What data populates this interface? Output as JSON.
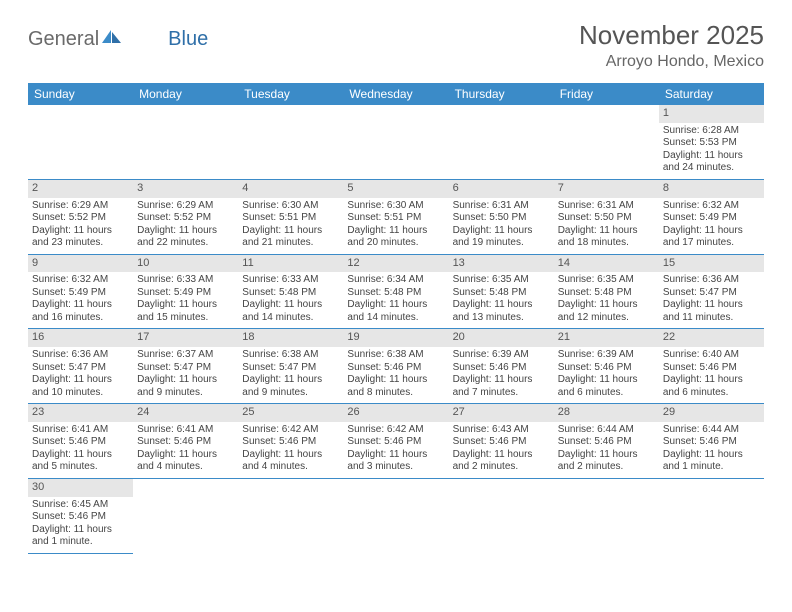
{
  "logo": {
    "text1": "General",
    "text2": "Blue"
  },
  "title": "November 2025",
  "location": "Arroyo Hondo, Mexico",
  "colors": {
    "header_bg": "#3b8bc8",
    "header_text": "#ffffff",
    "daynum_bg": "#e6e6e6",
    "border": "#3b8bc8",
    "text": "#444444"
  },
  "day_headers": [
    "Sunday",
    "Monday",
    "Tuesday",
    "Wednesday",
    "Thursday",
    "Friday",
    "Saturday"
  ],
  "weeks": [
    [
      {
        "n": "",
        "sr": "",
        "ss": "",
        "dl": ""
      },
      {
        "n": "",
        "sr": "",
        "ss": "",
        "dl": ""
      },
      {
        "n": "",
        "sr": "",
        "ss": "",
        "dl": ""
      },
      {
        "n": "",
        "sr": "",
        "ss": "",
        "dl": ""
      },
      {
        "n": "",
        "sr": "",
        "ss": "",
        "dl": ""
      },
      {
        "n": "",
        "sr": "",
        "ss": "",
        "dl": ""
      },
      {
        "n": "1",
        "sr": "Sunrise: 6:28 AM",
        "ss": "Sunset: 5:53 PM",
        "dl": "Daylight: 11 hours and 24 minutes."
      }
    ],
    [
      {
        "n": "2",
        "sr": "Sunrise: 6:29 AM",
        "ss": "Sunset: 5:52 PM",
        "dl": "Daylight: 11 hours and 23 minutes."
      },
      {
        "n": "3",
        "sr": "Sunrise: 6:29 AM",
        "ss": "Sunset: 5:52 PM",
        "dl": "Daylight: 11 hours and 22 minutes."
      },
      {
        "n": "4",
        "sr": "Sunrise: 6:30 AM",
        "ss": "Sunset: 5:51 PM",
        "dl": "Daylight: 11 hours and 21 minutes."
      },
      {
        "n": "5",
        "sr": "Sunrise: 6:30 AM",
        "ss": "Sunset: 5:51 PM",
        "dl": "Daylight: 11 hours and 20 minutes."
      },
      {
        "n": "6",
        "sr": "Sunrise: 6:31 AM",
        "ss": "Sunset: 5:50 PM",
        "dl": "Daylight: 11 hours and 19 minutes."
      },
      {
        "n": "7",
        "sr": "Sunrise: 6:31 AM",
        "ss": "Sunset: 5:50 PM",
        "dl": "Daylight: 11 hours and 18 minutes."
      },
      {
        "n": "8",
        "sr": "Sunrise: 6:32 AM",
        "ss": "Sunset: 5:49 PM",
        "dl": "Daylight: 11 hours and 17 minutes."
      }
    ],
    [
      {
        "n": "9",
        "sr": "Sunrise: 6:32 AM",
        "ss": "Sunset: 5:49 PM",
        "dl": "Daylight: 11 hours and 16 minutes."
      },
      {
        "n": "10",
        "sr": "Sunrise: 6:33 AM",
        "ss": "Sunset: 5:49 PM",
        "dl": "Daylight: 11 hours and 15 minutes."
      },
      {
        "n": "11",
        "sr": "Sunrise: 6:33 AM",
        "ss": "Sunset: 5:48 PM",
        "dl": "Daylight: 11 hours and 14 minutes."
      },
      {
        "n": "12",
        "sr": "Sunrise: 6:34 AM",
        "ss": "Sunset: 5:48 PM",
        "dl": "Daylight: 11 hours and 14 minutes."
      },
      {
        "n": "13",
        "sr": "Sunrise: 6:35 AM",
        "ss": "Sunset: 5:48 PM",
        "dl": "Daylight: 11 hours and 13 minutes."
      },
      {
        "n": "14",
        "sr": "Sunrise: 6:35 AM",
        "ss": "Sunset: 5:48 PM",
        "dl": "Daylight: 11 hours and 12 minutes."
      },
      {
        "n": "15",
        "sr": "Sunrise: 6:36 AM",
        "ss": "Sunset: 5:47 PM",
        "dl": "Daylight: 11 hours and 11 minutes."
      }
    ],
    [
      {
        "n": "16",
        "sr": "Sunrise: 6:36 AM",
        "ss": "Sunset: 5:47 PM",
        "dl": "Daylight: 11 hours and 10 minutes."
      },
      {
        "n": "17",
        "sr": "Sunrise: 6:37 AM",
        "ss": "Sunset: 5:47 PM",
        "dl": "Daylight: 11 hours and 9 minutes."
      },
      {
        "n": "18",
        "sr": "Sunrise: 6:38 AM",
        "ss": "Sunset: 5:47 PM",
        "dl": "Daylight: 11 hours and 9 minutes."
      },
      {
        "n": "19",
        "sr": "Sunrise: 6:38 AM",
        "ss": "Sunset: 5:46 PM",
        "dl": "Daylight: 11 hours and 8 minutes."
      },
      {
        "n": "20",
        "sr": "Sunrise: 6:39 AM",
        "ss": "Sunset: 5:46 PM",
        "dl": "Daylight: 11 hours and 7 minutes."
      },
      {
        "n": "21",
        "sr": "Sunrise: 6:39 AM",
        "ss": "Sunset: 5:46 PM",
        "dl": "Daylight: 11 hours and 6 minutes."
      },
      {
        "n": "22",
        "sr": "Sunrise: 6:40 AM",
        "ss": "Sunset: 5:46 PM",
        "dl": "Daylight: 11 hours and 6 minutes."
      }
    ],
    [
      {
        "n": "23",
        "sr": "Sunrise: 6:41 AM",
        "ss": "Sunset: 5:46 PM",
        "dl": "Daylight: 11 hours and 5 minutes."
      },
      {
        "n": "24",
        "sr": "Sunrise: 6:41 AM",
        "ss": "Sunset: 5:46 PM",
        "dl": "Daylight: 11 hours and 4 minutes."
      },
      {
        "n": "25",
        "sr": "Sunrise: 6:42 AM",
        "ss": "Sunset: 5:46 PM",
        "dl": "Daylight: 11 hours and 4 minutes."
      },
      {
        "n": "26",
        "sr": "Sunrise: 6:42 AM",
        "ss": "Sunset: 5:46 PM",
        "dl": "Daylight: 11 hours and 3 minutes."
      },
      {
        "n": "27",
        "sr": "Sunrise: 6:43 AM",
        "ss": "Sunset: 5:46 PM",
        "dl": "Daylight: 11 hours and 2 minutes."
      },
      {
        "n": "28",
        "sr": "Sunrise: 6:44 AM",
        "ss": "Sunset: 5:46 PM",
        "dl": "Daylight: 11 hours and 2 minutes."
      },
      {
        "n": "29",
        "sr": "Sunrise: 6:44 AM",
        "ss": "Sunset: 5:46 PM",
        "dl": "Daylight: 11 hours and 1 minute."
      }
    ],
    [
      {
        "n": "30",
        "sr": "Sunrise: 6:45 AM",
        "ss": "Sunset: 5:46 PM",
        "dl": "Daylight: 11 hours and 1 minute."
      },
      {
        "n": "",
        "sr": "",
        "ss": "",
        "dl": ""
      },
      {
        "n": "",
        "sr": "",
        "ss": "",
        "dl": ""
      },
      {
        "n": "",
        "sr": "",
        "ss": "",
        "dl": ""
      },
      {
        "n": "",
        "sr": "",
        "ss": "",
        "dl": ""
      },
      {
        "n": "",
        "sr": "",
        "ss": "",
        "dl": ""
      },
      {
        "n": "",
        "sr": "",
        "ss": "",
        "dl": ""
      }
    ]
  ]
}
